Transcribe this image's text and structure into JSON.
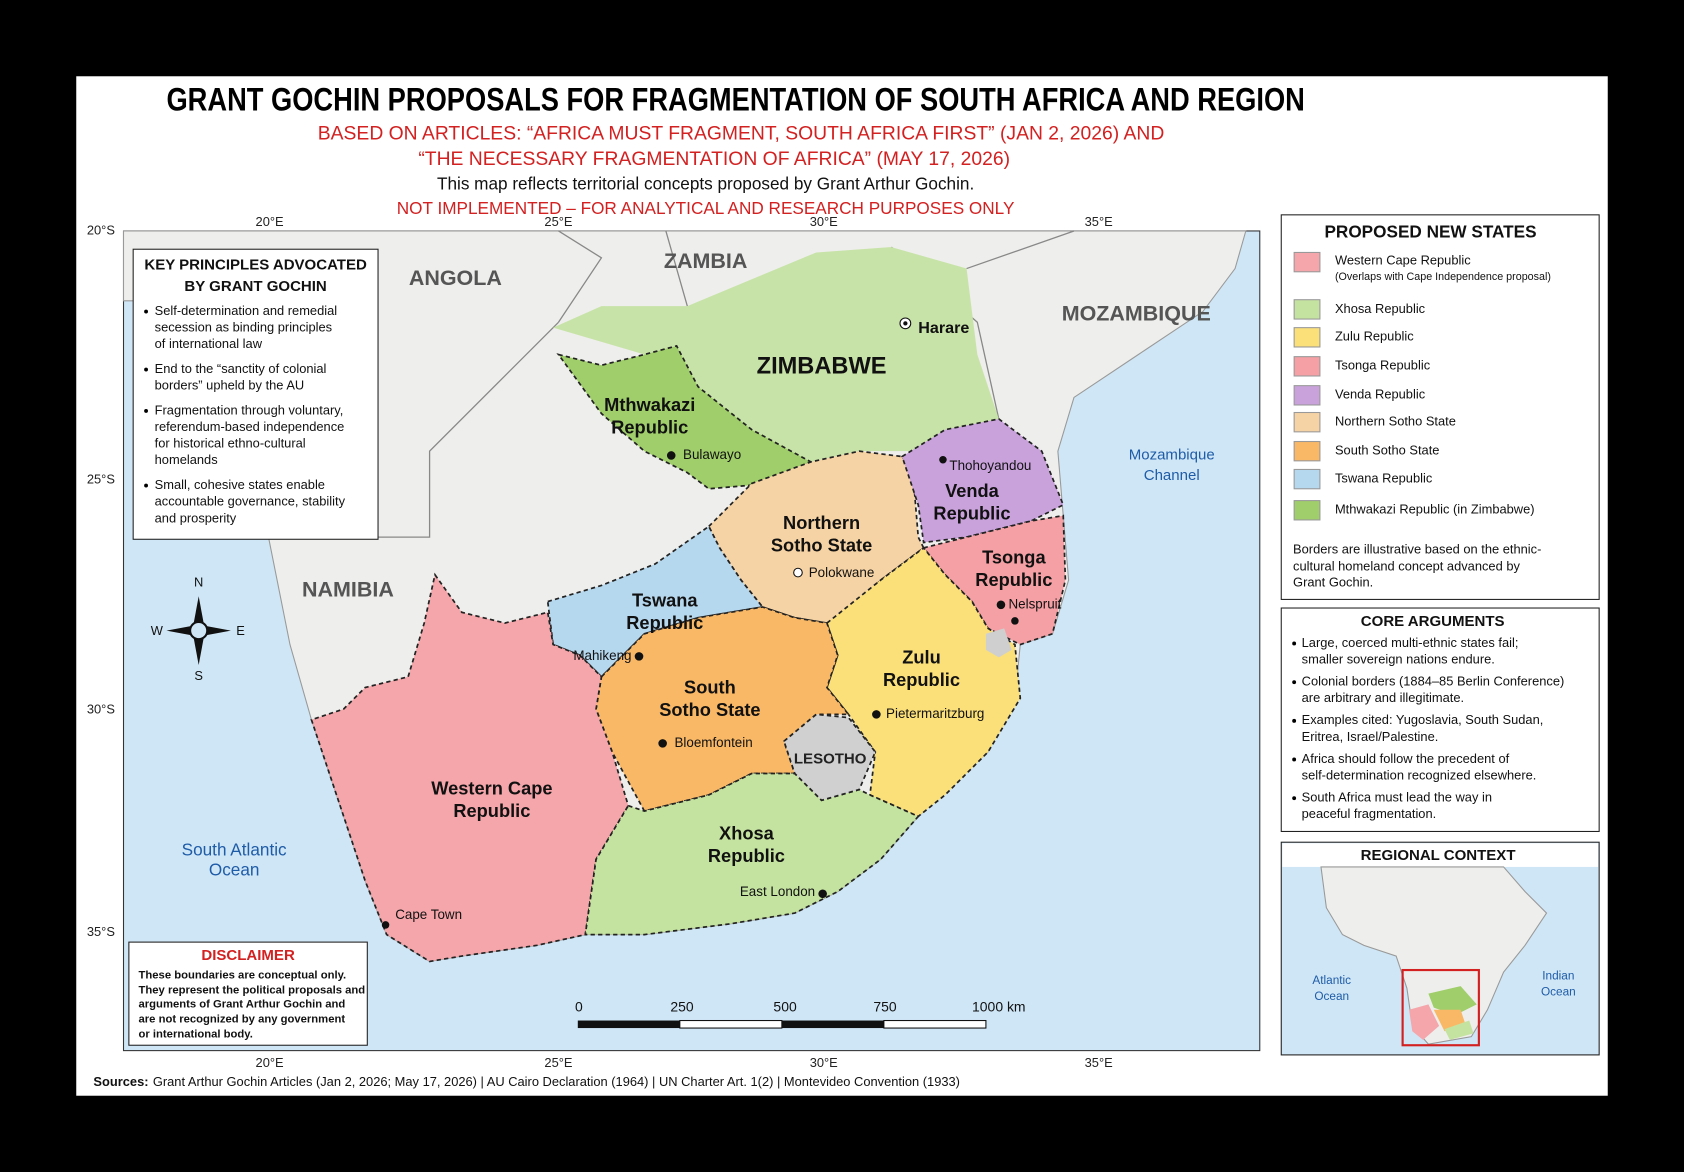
{
  "header": {
    "title": "GRANT GOCHIN PROPOSALS FOR FRAGMENTATION OF SOUTH AFRICA AND REGION",
    "subtitle": [
      "BASED ON ARTICLES: “AFRICA MUST FRAGMENT, SOUTH AFRICA FIRST” (JAN 2, 2026) AND",
      "“THE NECESSARY FRAGMENTATION OF AFRICA” (MAY 17, 2026)"
    ],
    "description": "This map reflects territorial concepts proposed by Grant Arthur Gochin.",
    "notice": "NOT IMPLEMENTED – FOR ANALYTICAL AND RESEARCH PURPOSES ONLY"
  },
  "graticule": {
    "top": [
      "20°E",
      "25°E",
      "30°E",
      "35°E"
    ],
    "bottom": [
      "20°E",
      "25°E",
      "30°E",
      "35°E"
    ],
    "left": [
      "20°S",
      "25°S",
      "30°S",
      "35°S"
    ]
  },
  "map": {
    "countries": [
      "ANGOLA",
      "ZAMBIA",
      "MOZAMBIQUE",
      "NAMIBIA",
      "ZIMBABWE",
      "LESOTHO"
    ],
    "waters": [
      [
        "Mozambique",
        "Channel"
      ],
      [
        "South Atlantic",
        "Ocean"
      ]
    ],
    "states": [
      [
        "Mthwakazi",
        "Republic"
      ],
      [
        "Northern",
        "Sotho State"
      ],
      [
        "Venda",
        "Republic"
      ],
      [
        "Tsonga",
        "Republic"
      ],
      [
        "Tswana",
        "Republic"
      ],
      [
        "South",
        "Sotho State"
      ],
      [
        "Zulu",
        "Republic"
      ],
      [
        "Western Cape",
        "Republic"
      ],
      [
        "Xhosa",
        "Republic"
      ]
    ],
    "cities": [
      "Harare",
      "Bulawayo",
      "Thohoyandou",
      "Polokwane",
      "Nelspruit",
      "Mahikeng",
      "Bloemfontein",
      "Pietermaritzburg",
      "East London",
      "Cape Town"
    ]
  },
  "key_principles": {
    "title": [
      "KEY PRINCIPLES ADVOCATED",
      "BY GRANT GOCHIN"
    ],
    "items": [
      [
        "Self-determination and remedial",
        "secession as binding principles",
        "of international law"
      ],
      [
        "End to the “sanctity of colonial",
        "borders” upheld by the AU"
      ],
      [
        "Fragmentation through voluntary,",
        "referendum-based independence",
        "for historical ethno-cultural",
        "homelands"
      ],
      [
        "Small, cohesive states enable",
        "accountable governance, stability",
        "and prosperity"
      ]
    ]
  },
  "compass": {
    "n": "N",
    "s": "S",
    "w": "W",
    "e": "E"
  },
  "legend": {
    "title": "PROPOSED NEW STATES",
    "items": [
      {
        "name": "Western Cape Republic",
        "note": "(Overlaps with Cape Independence proposal)"
      },
      {
        "name": "Xhosa Republic"
      },
      {
        "name": "Zulu Republic"
      },
      {
        "name": "Tsonga Republic"
      },
      {
        "name": "Venda Republic"
      },
      {
        "name": "Northern Sotho State"
      },
      {
        "name": "South Sotho State"
      },
      {
        "name": "Tswana Republic"
      },
      {
        "name": "Mthwakazi Republic (in Zimbabwe)"
      }
    ],
    "note": [
      "Borders are illustrative based on the ethnic-",
      "cultural homeland concept advanced by",
      "Grant Gochin."
    ]
  },
  "core_arguments": {
    "title": "CORE ARGUMENTS",
    "items": [
      [
        "Large, coerced multi-ethnic states fail;",
        "smaller sovereign nations endure."
      ],
      [
        "Colonial borders (1884–85 Berlin Conference)",
        "are arbitrary and illegitimate."
      ],
      [
        "Examples cited: Yugoslavia, South Sudan,",
        "Eritrea, Israel/Palestine."
      ],
      [
        "Africa should follow the precedent of",
        "self-determination recognized elsewhere."
      ],
      [
        "South Africa must lead the way in",
        "peaceful fragmentation."
      ]
    ]
  },
  "regional_context": {
    "title": "REGIONAL CONTEXT",
    "labels": [
      [
        "Atlantic",
        "Ocean"
      ],
      [
        "Indian",
        "Ocean"
      ]
    ]
  },
  "scale_bar": [
    "0",
    "250",
    "500",
    "750",
    "1000 km"
  ],
  "disclaimer": {
    "title": "DISCLAIMER",
    "text": [
      "These boundaries are conceptual only.",
      "They represent the political proposals and",
      "arguments of Grant Arthur Gochin and",
      "are not recognized by any government",
      "or international body."
    ]
  },
  "sources": {
    "label": "Sources:",
    "text": "Grant Arthur Gochin Articles (Jan 2, 2026; May 17, 2026) | AU Cairo Declaration (1964) | UN Charter Art. 1(2) | Montevideo Convention (1933)"
  }
}
